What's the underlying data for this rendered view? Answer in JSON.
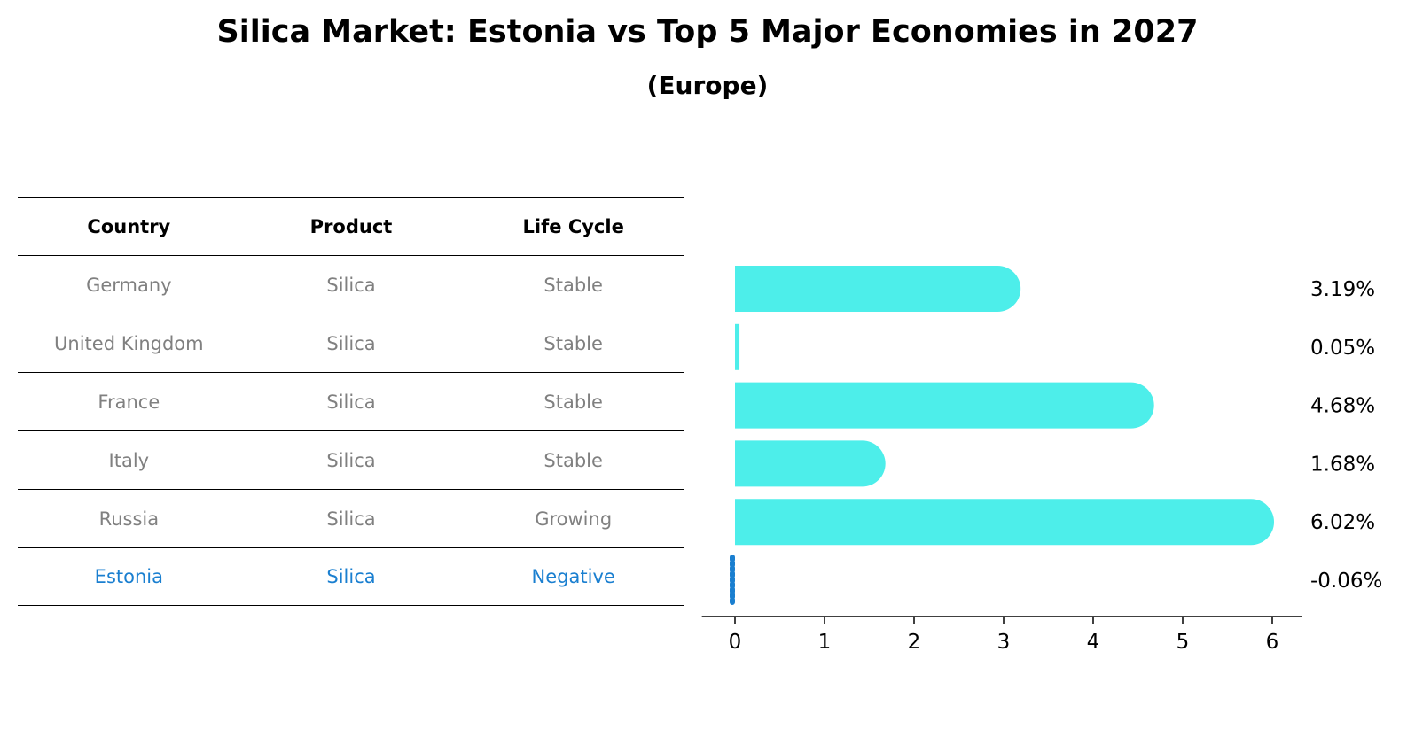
{
  "title": "Silica Market: Estonia vs Top 5 Major Economies in 2027",
  "subtitle": "(Europe)",
  "table": {
    "headers": [
      "Country",
      "Product",
      "Life Cycle"
    ],
    "rows": [
      [
        "Germany",
        "Silica",
        "Stable"
      ],
      [
        "United Kingdom",
        "Silica",
        "Stable"
      ],
      [
        "France",
        "Silica",
        "Stable"
      ],
      [
        "Italy",
        "Silica",
        "Stable"
      ],
      [
        "Russia",
        "Silica",
        "Growing"
      ],
      [
        "Estonia",
        "Silica",
        "Negative"
      ]
    ]
  },
  "colors": {
    "bar": "#4deeea",
    "highlight": "#1a7fd0",
    "muted": "#808080"
  },
  "chart_data": {
    "type": "bar",
    "orientation": "horizontal",
    "categories": [
      "Germany",
      "United Kingdom",
      "France",
      "Italy",
      "Russia",
      "Estonia"
    ],
    "values": [
      3.19,
      0.05,
      4.68,
      1.68,
      6.02,
      -0.06
    ],
    "value_labels": [
      "3.19%",
      "0.05%",
      "4.68%",
      "1.68%",
      "6.02%",
      "-0.06%"
    ],
    "xticks": [
      "0",
      "1",
      "2",
      "3",
      "4",
      "5",
      "6"
    ],
    "xlim": [
      -0.37,
      6.33
    ]
  }
}
